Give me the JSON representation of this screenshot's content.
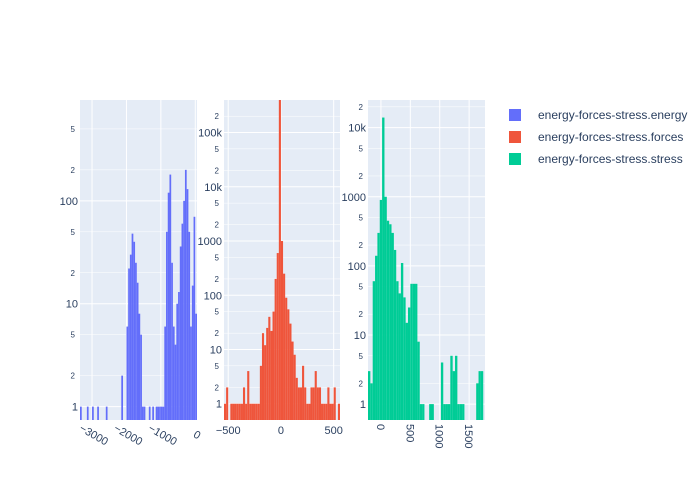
{
  "chart_data": {
    "type": "histogram",
    "y_scale": "log",
    "legend_position": "right",
    "grid": true,
    "panels": [
      {
        "series_name": "energy-forces-stress.energy",
        "color": "#636efa",
        "xlim": [
          -3350,
          50
        ],
        "ylim_log10": [
          -0.13,
          2.98
        ],
        "x_ticks": [
          "−3000",
          "−2000",
          "−1000",
          "0"
        ],
        "x_tick_values": [
          -3000,
          -2000,
          -1000,
          0
        ],
        "x_tick_rotation": 30,
        "y_major_ticks": [
          "1",
          "10",
          "100"
        ],
        "y_major_values": [
          1,
          10,
          100
        ],
        "y_minor_ticks": [
          "2",
          "5",
          "2",
          "5",
          "2",
          "5"
        ],
        "y_minor_values": [
          2,
          5,
          20,
          50,
          200,
          500
        ],
        "bin_width": 50,
        "bins": [
          {
            "x": -3325,
            "count": 1
          },
          {
            "x": -3125,
            "count": 1
          },
          {
            "x": -2975,
            "count": 1
          },
          {
            "x": -2825,
            "count": 1
          },
          {
            "x": -2575,
            "count": 1
          },
          {
            "x": -2125,
            "count": 2
          },
          {
            "x": -1975,
            "count": 6
          },
          {
            "x": -1925,
            "count": 22
          },
          {
            "x": -1875,
            "count": 30
          },
          {
            "x": -1825,
            "count": 48
          },
          {
            "x": -1775,
            "count": 40
          },
          {
            "x": -1725,
            "count": 25
          },
          {
            "x": -1675,
            "count": 16
          },
          {
            "x": -1625,
            "count": 8
          },
          {
            "x": -1575,
            "count": 5
          },
          {
            "x": -1525,
            "count": 1
          },
          {
            "x": -1475,
            "count": 1
          },
          {
            "x": -1325,
            "count": 1
          },
          {
            "x": -1225,
            "count": 1
          },
          {
            "x": -1125,
            "count": 1
          },
          {
            "x": -1075,
            "count": 1
          },
          {
            "x": -1025,
            "count": 1
          },
          {
            "x": -975,
            "count": 1
          },
          {
            "x": -925,
            "count": 1
          },
          {
            "x": -875,
            "count": 6
          },
          {
            "x": -825,
            "count": 50
          },
          {
            "x": -775,
            "count": 120
          },
          {
            "x": -725,
            "count": 180
          },
          {
            "x": -675,
            "count": 25
          },
          {
            "x": -625,
            "count": 6
          },
          {
            "x": -575,
            "count": 4
          },
          {
            "x": -525,
            "count": 10
          },
          {
            "x": -475,
            "count": 13
          },
          {
            "x": -425,
            "count": 36
          },
          {
            "x": -375,
            "count": 60
          },
          {
            "x": -325,
            "count": 100
          },
          {
            "x": -275,
            "count": 200
          },
          {
            "x": -225,
            "count": 130
          },
          {
            "x": -175,
            "count": 50
          },
          {
            "x": -125,
            "count": 6
          },
          {
            "x": -75,
            "count": 15
          },
          {
            "x": -25,
            "count": 70
          },
          {
            "x": 25,
            "count": 8
          }
        ]
      },
      {
        "series_name": "energy-forces-stress.forces",
        "color": "#ef553b",
        "xlim": [
          -540,
          560
        ],
        "ylim_log10": [
          -0.3,
          5.6
        ],
        "x_ticks": [
          "−500",
          "0",
          "500"
        ],
        "x_tick_values": [
          -500,
          0,
          500
        ],
        "x_tick_rotation": 0,
        "y_major_ticks": [
          "1",
          "10",
          "100",
          "1000",
          "10k",
          "100k"
        ],
        "y_major_values": [
          1,
          10,
          100,
          1000,
          10000,
          100000
        ],
        "y_minor_ticks": [
          "2",
          "5",
          "2",
          "5",
          "2",
          "5",
          "2",
          "5",
          "2",
          "5",
          "2",
          "5",
          "2"
        ],
        "y_minor_values": [
          2,
          5,
          20,
          50,
          200,
          500,
          2000,
          5000,
          20000,
          50000,
          200000,
          500000,
          2000000
        ],
        "bin_width": 20,
        "bins": [
          {
            "x": -530,
            "count": 1
          },
          {
            "x": -510,
            "count": 2
          },
          {
            "x": -470,
            "count": 1
          },
          {
            "x": -450,
            "count": 1
          },
          {
            "x": -430,
            "count": 1
          },
          {
            "x": -410,
            "count": 1
          },
          {
            "x": -390,
            "count": 1
          },
          {
            "x": -370,
            "count": 1
          },
          {
            "x": -350,
            "count": 2
          },
          {
            "x": -330,
            "count": 1
          },
          {
            "x": -310,
            "count": 4
          },
          {
            "x": -290,
            "count": 1
          },
          {
            "x": -270,
            "count": 1
          },
          {
            "x": -250,
            "count": 1
          },
          {
            "x": -230,
            "count": 1
          },
          {
            "x": -210,
            "count": 1
          },
          {
            "x": -190,
            "count": 5
          },
          {
            "x": -170,
            "count": 20
          },
          {
            "x": -150,
            "count": 12
          },
          {
            "x": -130,
            "count": 25
          },
          {
            "x": -110,
            "count": 40
          },
          {
            "x": -90,
            "count": 22
          },
          {
            "x": -70,
            "count": 50
          },
          {
            "x": -50,
            "count": 200
          },
          {
            "x": -30,
            "count": 600
          },
          {
            "x": -10,
            "count": 1000000
          },
          {
            "x": 10,
            "count": 1000
          },
          {
            "x": 30,
            "count": 250
          },
          {
            "x": 50,
            "count": 90
          },
          {
            "x": 70,
            "count": 55
          },
          {
            "x": 90,
            "count": 30
          },
          {
            "x": 110,
            "count": 14
          },
          {
            "x": 130,
            "count": 8
          },
          {
            "x": 150,
            "count": 3
          },
          {
            "x": 170,
            "count": 2
          },
          {
            "x": 190,
            "count": 2
          },
          {
            "x": 210,
            "count": 5
          },
          {
            "x": 230,
            "count": 2
          },
          {
            "x": 250,
            "count": 1
          },
          {
            "x": 270,
            "count": 1
          },
          {
            "x": 290,
            "count": 2
          },
          {
            "x": 310,
            "count": 2
          },
          {
            "x": 330,
            "count": 4
          },
          {
            "x": 350,
            "count": 2
          },
          {
            "x": 370,
            "count": 2
          },
          {
            "x": 390,
            "count": 1
          },
          {
            "x": 410,
            "count": 1
          },
          {
            "x": 430,
            "count": 1
          },
          {
            "x": 450,
            "count": 2
          },
          {
            "x": 470,
            "count": 1
          },
          {
            "x": 490,
            "count": 1
          },
          {
            "x": 510,
            "count": 2
          },
          {
            "x": 550,
            "count": 1
          }
        ]
      },
      {
        "series_name": "energy-forces-stress.stress",
        "color": "#00cc96",
        "xlim": [
          -220,
          1770
        ],
        "ylim_log10": [
          -0.23,
          4.4
        ],
        "x_ticks": [
          "0",
          "500",
          "1000",
          "1500"
        ],
        "x_tick_values": [
          0,
          500,
          1000,
          1500
        ],
        "x_tick_rotation": 90,
        "y_major_ticks": [
          "1",
          "10",
          "100",
          "1000",
          "10k"
        ],
        "y_major_values": [
          1,
          10,
          100,
          1000,
          10000
        ],
        "y_minor_ticks": [
          "2",
          "5",
          "2",
          "5",
          "2",
          "5",
          "2",
          "5",
          "2"
        ],
        "y_minor_values": [
          2,
          5,
          20,
          50,
          200,
          500,
          2000,
          5000,
          20000
        ],
        "bin_width": 40,
        "bins": [
          {
            "x": -200,
            "count": 3
          },
          {
            "x": -160,
            "count": 2
          },
          {
            "x": -120,
            "count": 60
          },
          {
            "x": -80,
            "count": 140
          },
          {
            "x": -40,
            "count": 300
          },
          {
            "x": 0,
            "count": 900
          },
          {
            "x": 40,
            "count": 14000
          },
          {
            "x": 80,
            "count": 1000
          },
          {
            "x": 120,
            "count": 450
          },
          {
            "x": 160,
            "count": 400
          },
          {
            "x": 200,
            "count": 300
          },
          {
            "x": 240,
            "count": 170
          },
          {
            "x": 280,
            "count": 60
          },
          {
            "x": 320,
            "count": 40
          },
          {
            "x": 360,
            "count": 110
          },
          {
            "x": 400,
            "count": 35
          },
          {
            "x": 440,
            "count": 15
          },
          {
            "x": 480,
            "count": 25
          },
          {
            "x": 520,
            "count": 55
          },
          {
            "x": 560,
            "count": 55
          },
          {
            "x": 600,
            "count": 55
          },
          {
            "x": 640,
            "count": 8
          },
          {
            "x": 680,
            "count": 1
          },
          {
            "x": 720,
            "count": 1
          },
          {
            "x": 840,
            "count": 1
          },
          {
            "x": 880,
            "count": 1
          },
          {
            "x": 1040,
            "count": 4
          },
          {
            "x": 1080,
            "count": 1
          },
          {
            "x": 1120,
            "count": 1
          },
          {
            "x": 1160,
            "count": 1
          },
          {
            "x": 1200,
            "count": 5
          },
          {
            "x": 1240,
            "count": 3
          },
          {
            "x": 1280,
            "count": 5
          },
          {
            "x": 1320,
            "count": 1
          },
          {
            "x": 1360,
            "count": 1
          },
          {
            "x": 1400,
            "count": 1
          },
          {
            "x": 1640,
            "count": 2
          },
          {
            "x": 1680,
            "count": 3
          },
          {
            "x": 1720,
            "count": 3
          }
        ]
      }
    ]
  },
  "legend": {
    "items": [
      {
        "label": "energy-forces-stress.energy",
        "color": "#636efa"
      },
      {
        "label": "energy-forces-stress.forces",
        "color": "#ef553b"
      },
      {
        "label": "energy-forces-stress.stress",
        "color": "#00cc96"
      }
    ]
  }
}
